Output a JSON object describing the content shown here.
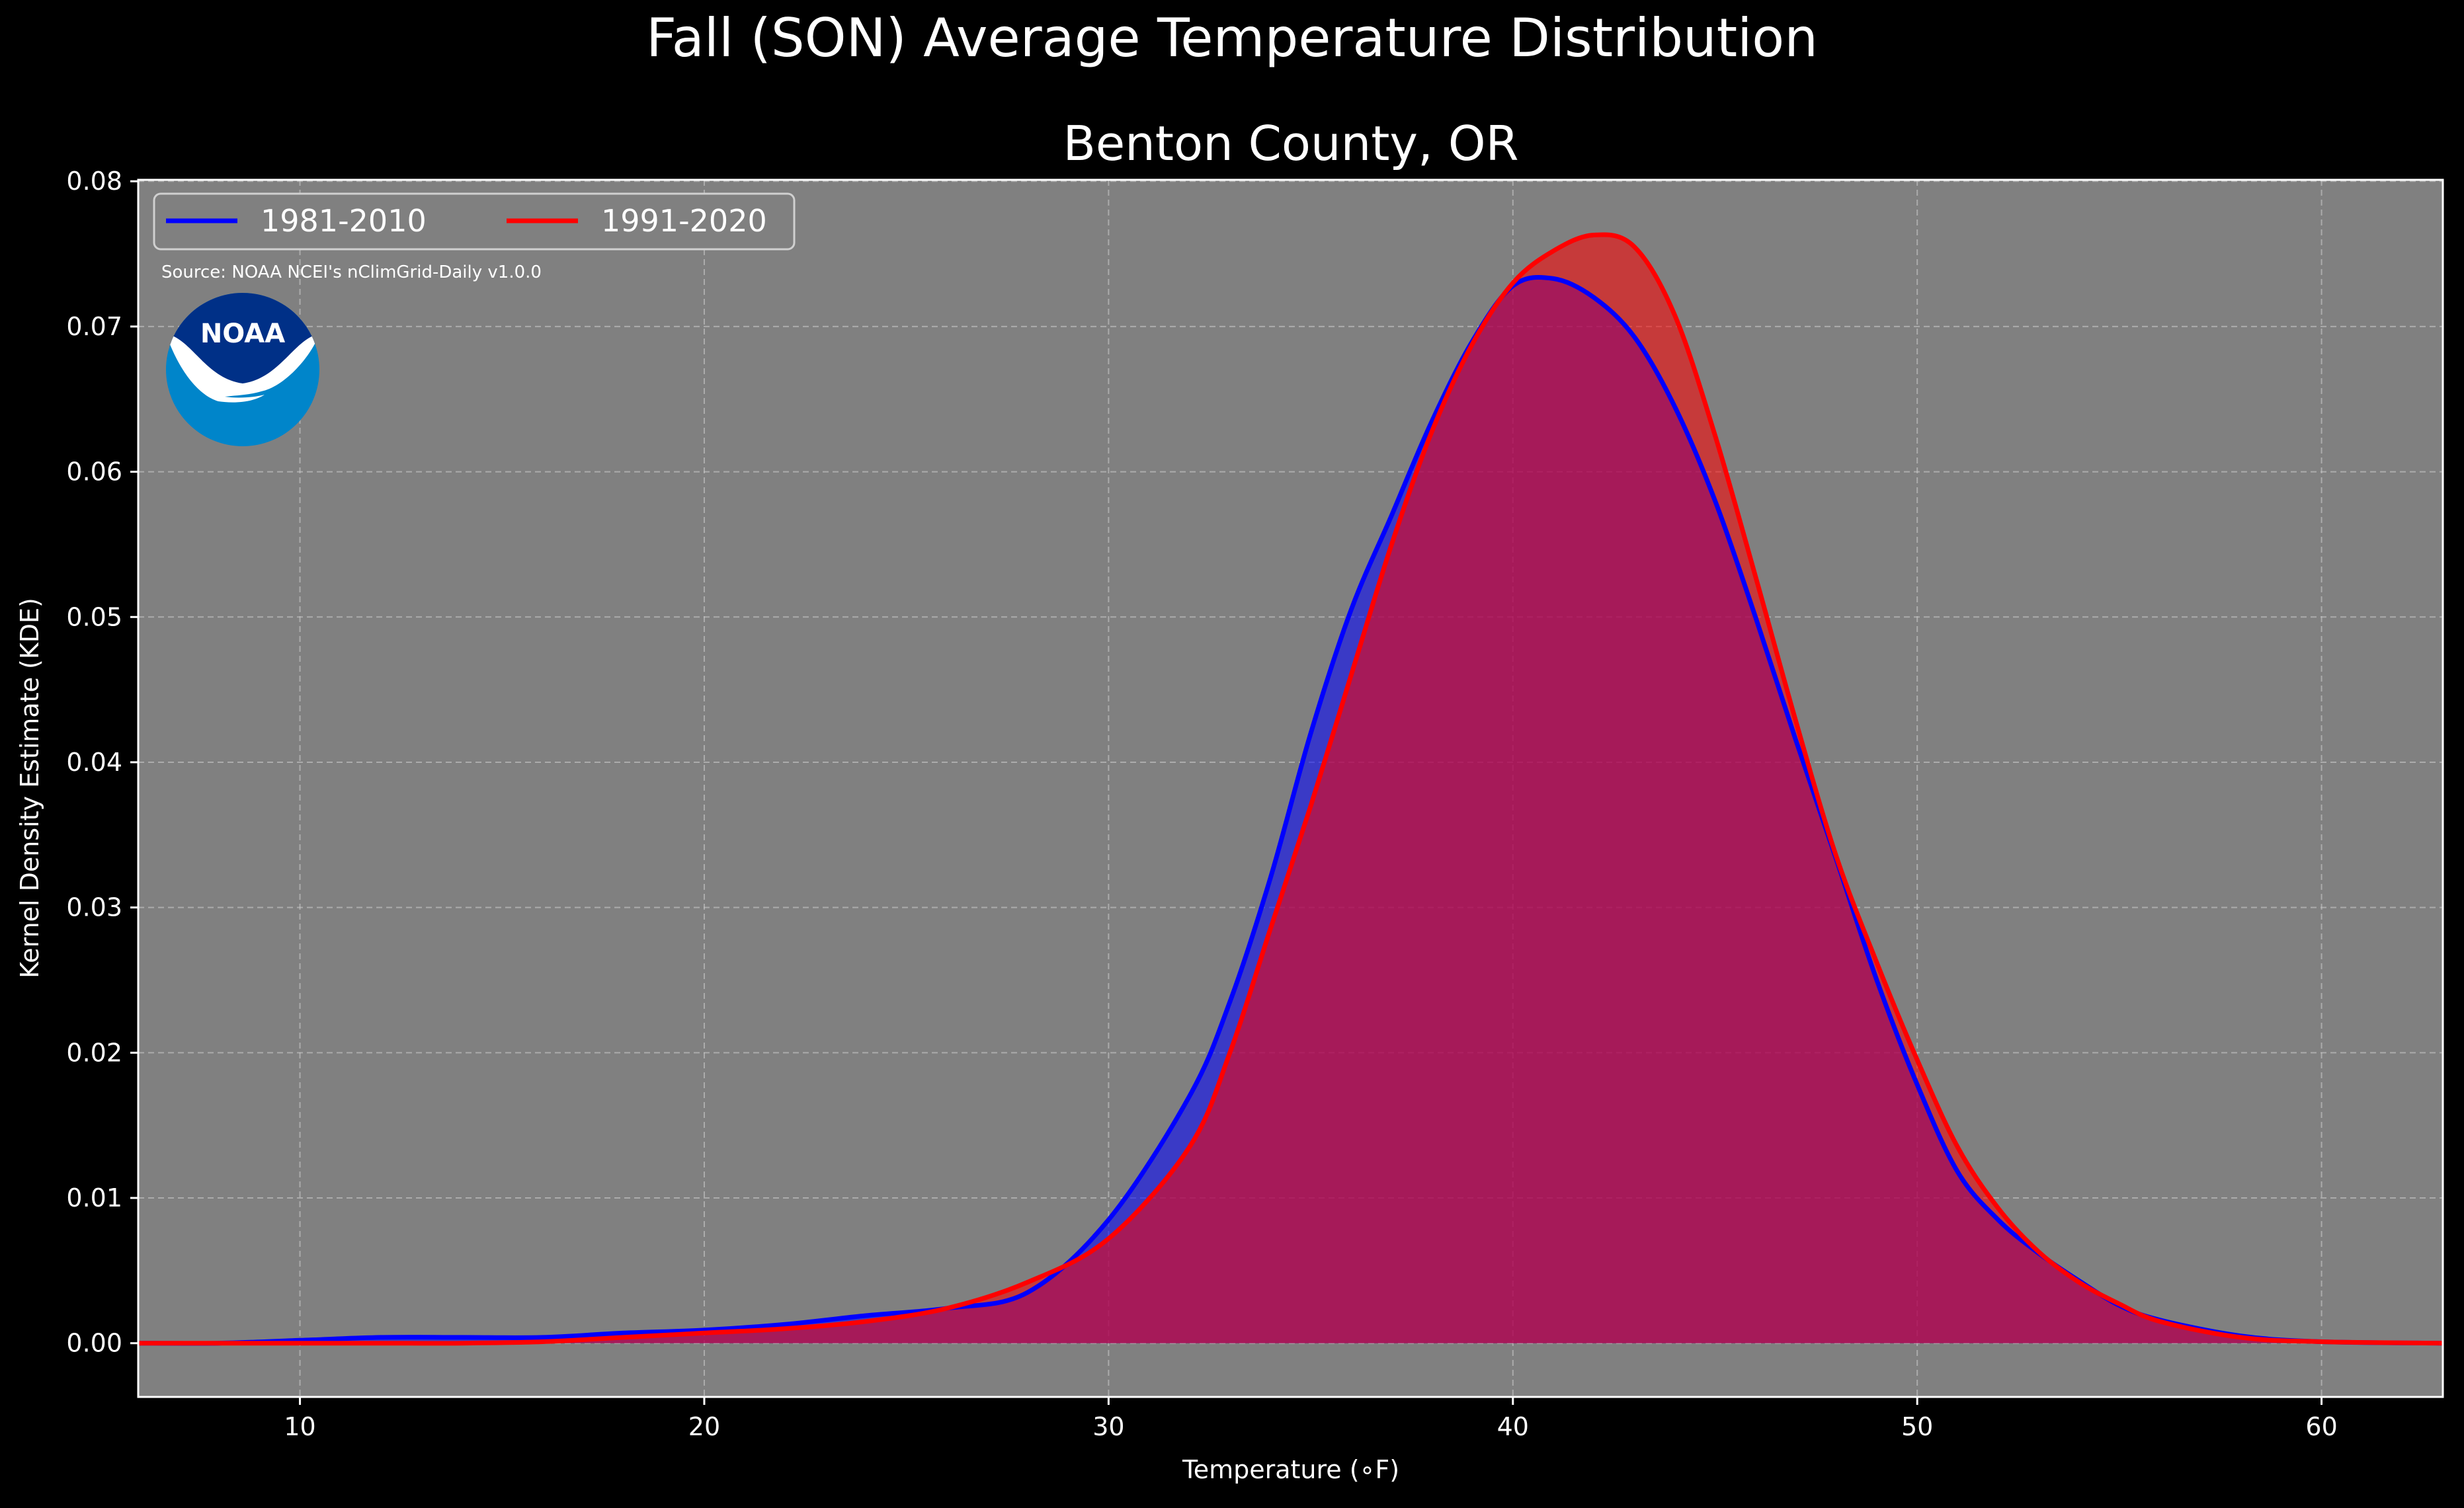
{
  "figure": {
    "suptitle": "Fall (SON) Average Temperature Distribution",
    "background": "#000000",
    "plot_background": "#808080",
    "text_color": "#ffffff",
    "source_note": "Source: NOAA NCEI's nClimGrid-Daily v1.0.0",
    "logo": {
      "icon": "noaa-logo",
      "text": "NOAA",
      "colors": {
        "dark": "#003087",
        "light": "#0085ca"
      }
    }
  },
  "chart_data": {
    "type": "area",
    "title": "Benton County, OR",
    "xlabel": "Temperature ($^\\circ$F)",
    "xlabel_display": "Temperature (∘F)",
    "ylabel": "Kernel Density Estimate (KDE)",
    "xlim": [
      6,
      63
    ],
    "ylim": [
      -0.0037,
      0.0801
    ],
    "xticks": [
      10,
      20,
      30,
      40,
      50,
      60
    ],
    "xtick_labels": [
      "10",
      "20",
      "30",
      "40",
      "50",
      "60"
    ],
    "yticks": [
      0.0,
      0.01,
      0.02,
      0.03,
      0.04,
      0.05,
      0.06,
      0.07,
      0.08
    ],
    "ytick_labels": [
      "0.00",
      "0.01",
      "0.02",
      "0.03",
      "0.04",
      "0.05",
      "0.06",
      "0.07",
      "0.08"
    ],
    "grid": true,
    "legend": {
      "placement": "top-left",
      "columns": 2
    },
    "series": [
      {
        "name": "1981-2010",
        "color": "#0000ff",
        "fill": "#0000ff",
        "x": [
          6,
          8,
          10,
          12,
          14,
          16,
          18,
          20,
          22,
          24,
          26,
          28,
          30,
          32,
          33,
          34,
          35,
          36,
          37,
          38,
          39,
          40,
          41,
          42,
          43,
          44,
          45,
          46,
          47,
          48,
          49,
          50,
          51,
          52,
          53,
          54,
          55,
          56,
          58,
          60,
          63
        ],
        "y": [
          0,
          0,
          0.0002,
          0.0004,
          0.0004,
          0.0004,
          0.0007,
          0.0009,
          0.0013,
          0.0019,
          0.0024,
          0.0035,
          0.0085,
          0.017,
          0.0235,
          0.032,
          0.042,
          0.0505,
          0.057,
          0.0635,
          0.069,
          0.0728,
          0.0733,
          0.072,
          0.0693,
          0.0645,
          0.058,
          0.05,
          0.0415,
          0.0333,
          0.025,
          0.0178,
          0.0118,
          0.0085,
          0.0062,
          0.0043,
          0.0026,
          0.0016,
          0.0005,
          0.0001,
          0
        ]
      },
      {
        "name": "1991-2020",
        "color": "#ff0000",
        "fill": "#ff0000",
        "x": [
          6,
          8,
          10,
          12,
          14,
          16,
          18,
          20,
          22,
          24,
          26,
          28,
          30,
          32,
          33,
          34,
          35,
          36,
          37,
          38,
          39,
          40,
          41,
          42,
          43,
          44,
          45,
          46,
          47,
          48,
          49,
          50,
          51,
          52,
          53,
          54,
          55,
          56,
          58,
          60,
          63
        ],
        "y": [
          0,
          0,
          0,
          0,
          0,
          0.0001,
          0.0004,
          0.0007,
          0.001,
          0.0015,
          0.0024,
          0.0042,
          0.0072,
          0.0135,
          0.02,
          0.0285,
          0.037,
          0.046,
          0.055,
          0.0628,
          0.0688,
          0.073,
          0.0752,
          0.0763,
          0.0755,
          0.0708,
          0.0625,
          0.0528,
          0.0428,
          0.0335,
          0.0262,
          0.0195,
          0.0135,
          0.0093,
          0.0063,
          0.0042,
          0.0027,
          0.0015,
          0.0004,
          0.0001,
          0
        ]
      }
    ]
  }
}
